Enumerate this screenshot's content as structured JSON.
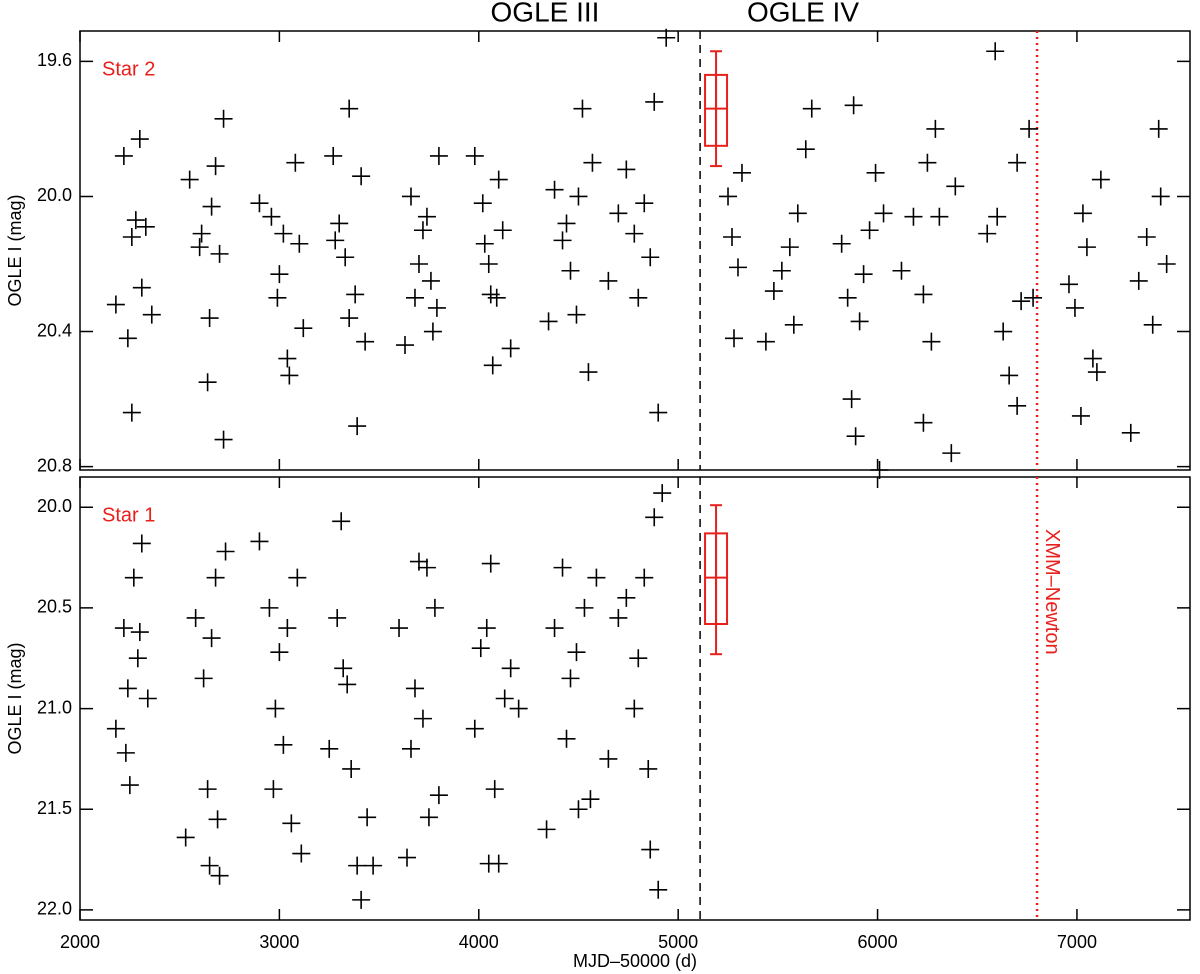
{
  "chart_data": [
    {
      "type": "scatter",
      "label": "Star 2",
      "label_color": "#e8201c",
      "phase_labels": [
        "OGLE III",
        "OGLE IV"
      ],
      "ylabel": "OGLE I (mag)",
      "color": "#000000",
      "xlim": [
        2000,
        7567
      ],
      "ylim": [
        19.51,
        20.81
      ],
      "y_inverted": true,
      "xticks": [
        2000,
        3000,
        4000,
        5000,
        6000,
        7000
      ],
      "show_xtick_labels": false,
      "yticks": [
        19.6,
        {
          "value": 20,
          "label": "20.0"
        },
        20.4,
        20.8
      ],
      "x": [
        2180,
        2220,
        2240,
        2260,
        2280,
        2300,
        2260,
        2310,
        2330,
        2360,
        2550,
        2600,
        2640,
        2660,
        2680,
        2700,
        2720,
        2720,
        2650,
        2610,
        2900,
        2960,
        3000,
        3020,
        3040,
        3080,
        3100,
        3120,
        3050,
        2990,
        3270,
        3300,
        3330,
        3350,
        3380,
        3390,
        3410,
        3430,
        3350,
        3280,
        3630,
        3660,
        3700,
        3720,
        3760,
        3790,
        3800,
        3680,
        3740,
        3770,
        3980,
        4020,
        4050,
        4070,
        4090,
        4120,
        4160,
        4100,
        4060,
        4030,
        4350,
        4380,
        4420,
        4460,
        4500,
        4520,
        4550,
        4440,
        4490,
        4570,
        4650,
        4700,
        4740,
        4780,
        4800,
        4830,
        4860,
        4880,
        4900,
        4940,
        5250,
        5270,
        5300,
        5320,
        5280,
        5440,
        5480,
        5520,
        5560,
        5600,
        5640,
        5670,
        5580,
        5820,
        5850,
        5870,
        5890,
        5910,
        5930,
        5960,
        5990,
        6030,
        6010,
        5880,
        6120,
        6180,
        6230,
        6250,
        6270,
        6310,
        6230,
        6370,
        6390,
        6290,
        6550,
        6600,
        6630,
        6660,
        6700,
        6720,
        6760,
        6780,
        6590,
        6700,
        6960,
        6990,
        7030,
        7050,
        7080,
        7100,
        7120,
        7020,
        7270,
        7310,
        7350,
        7380,
        7420,
        7410,
        7450
      ],
      "y": [
        20.32,
        19.88,
        20.42,
        20.12,
        20.07,
        19.83,
        20.64,
        20.27,
        20.09,
        20.35,
        19.95,
        20.15,
        20.55,
        20.03,
        19.91,
        20.17,
        20.72,
        19.77,
        20.36,
        20.11,
        20.02,
        20.06,
        20.23,
        20.11,
        20.48,
        19.9,
        20.14,
        20.39,
        20.53,
        20.3,
        19.88,
        20.08,
        20.18,
        19.74,
        20.29,
        20.68,
        19.94,
        20.43,
        20.36,
        20.13,
        20.44,
        20.0,
        20.2,
        20.1,
        20.25,
        20.33,
        19.88,
        20.3,
        20.06,
        20.4,
        19.88,
        20.02,
        20.2,
        20.5,
        20.3,
        20.1,
        20.45,
        19.95,
        20.29,
        20.14,
        20.37,
        19.98,
        20.13,
        20.22,
        20.0,
        19.74,
        20.52,
        20.08,
        20.35,
        19.9,
        20.25,
        20.05,
        19.92,
        20.11,
        20.3,
        20.02,
        20.18,
        19.72,
        20.64,
        19.53,
        20.0,
        20.12,
        20.21,
        19.93,
        20.42,
        20.43,
        20.28,
        20.22,
        20.15,
        20.05,
        19.86,
        19.74,
        20.38,
        20.14,
        20.3,
        20.6,
        20.71,
        20.37,
        20.23,
        20.1,
        19.93,
        20.05,
        20.81,
        19.73,
        20.22,
        20.06,
        20.29,
        19.9,
        20.43,
        20.06,
        20.67,
        20.76,
        19.97,
        19.8,
        20.11,
        20.06,
        20.4,
        20.53,
        20.62,
        20.31,
        19.8,
        20.3,
        19.57,
        19.9,
        20.26,
        20.33,
        20.05,
        20.15,
        20.48,
        20.52,
        19.95,
        20.65,
        20.7,
        20.25,
        20.12,
        20.38,
        20.0,
        19.8,
        20.2
      ],
      "box": {
        "color": "#e8201c",
        "x": 5190,
        "low": 19.57,
        "q1": 19.64,
        "median": 19.74,
        "q3": 19.85,
        "high": 19.91
      },
      "vlines": [
        {
          "x": 5110,
          "color": "#000000",
          "style": "dashed"
        },
        {
          "x": 6800,
          "color": "#e8201c",
          "style": "dotted"
        }
      ]
    },
    {
      "type": "scatter",
      "label": "Star 1",
      "label_color": "#e8201c",
      "ylabel": "OGLE I (mag)",
      "xlabel": "MJD–50000 (d)",
      "color": "#000000",
      "xlim": [
        2000,
        7567
      ],
      "ylim": [
        19.85,
        22.05
      ],
      "y_inverted": true,
      "xticks": [
        2000,
        3000,
        4000,
        5000,
        6000,
        7000
      ],
      "show_xtick_labels": true,
      "yticks": [
        {
          "value": 20,
          "label": "20.0"
        },
        20.5,
        {
          "value": 21,
          "label": "21.0"
        },
        21.5,
        {
          "value": 22,
          "label": "22.0"
        }
      ],
      "x": [
        2180,
        2220,
        2240,
        2250,
        2270,
        2290,
        2310,
        2340,
        2230,
        2300,
        2530,
        2580,
        2620,
        2640,
        2660,
        2680,
        2690,
        2700,
        2730,
        2650,
        2900,
        2950,
        2980,
        3000,
        3020,
        3040,
        3060,
        3090,
        3110,
        2970,
        3250,
        3290,
        3310,
        3340,
        3360,
        3390,
        3410,
        3440,
        3470,
        3320,
        3600,
        3640,
        3680,
        3700,
        3720,
        3750,
        3780,
        3800,
        3740,
        3660,
        3980,
        4010,
        4040,
        4060,
        4080,
        4100,
        4130,
        4160,
        4200,
        4050,
        4340,
        4380,
        4420,
        4460,
        4500,
        4530,
        4560,
        4590,
        4440,
        4490,
        4650,
        4700,
        4740,
        4780,
        4800,
        4830,
        4860,
        4880,
        4900,
        4920,
        4850
      ],
      "y": [
        21.1,
        20.6,
        20.9,
        21.38,
        20.35,
        20.75,
        20.18,
        20.95,
        21.22,
        20.62,
        21.64,
        20.55,
        20.85,
        21.4,
        20.65,
        20.35,
        21.55,
        21.83,
        20.22,
        21.78,
        20.17,
        20.5,
        21.0,
        20.72,
        21.18,
        20.6,
        21.57,
        20.35,
        21.72,
        21.4,
        21.2,
        20.55,
        20.07,
        20.88,
        21.3,
        21.78,
        21.95,
        21.54,
        21.78,
        20.8,
        20.6,
        21.74,
        20.9,
        20.27,
        21.05,
        21.54,
        20.5,
        21.43,
        20.3,
        21.2,
        21.1,
        20.7,
        20.6,
        20.28,
        21.4,
        21.77,
        20.95,
        20.8,
        21.0,
        21.77,
        21.6,
        20.6,
        20.3,
        20.85,
        21.5,
        20.5,
        21.45,
        20.35,
        21.15,
        20.72,
        21.25,
        20.55,
        20.45,
        21.0,
        20.75,
        20.35,
        21.7,
        20.05,
        21.9,
        19.93,
        21.3
      ],
      "box": {
        "color": "#e8201c",
        "x": 5190,
        "low": 19.99,
        "q1": 20.13,
        "median": 20.35,
        "q3": 20.58,
        "high": 20.73
      },
      "vlines": [
        {
          "x": 5110,
          "color": "#000000",
          "style": "dashed"
        },
        {
          "x": 6800,
          "color": "#e8201c",
          "style": "dotted",
          "label": "XMM–Newton"
        }
      ]
    }
  ]
}
